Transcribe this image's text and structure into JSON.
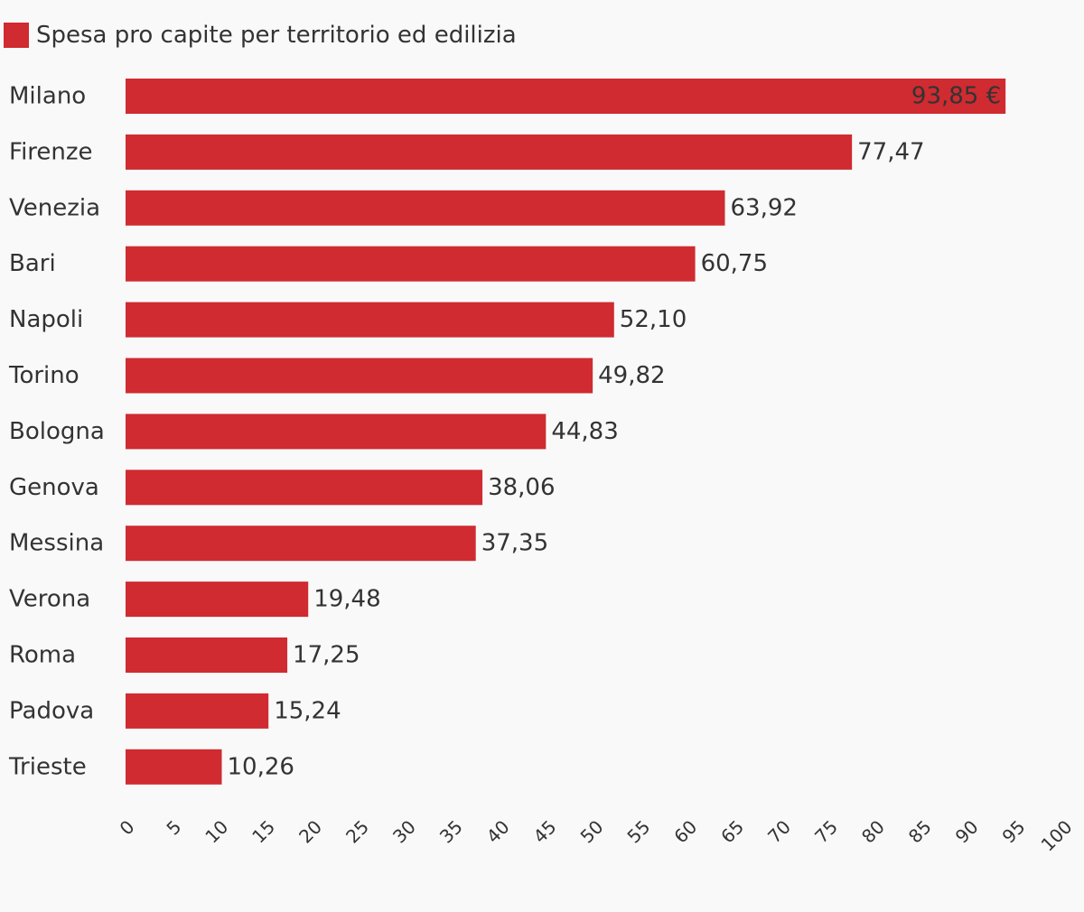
{
  "chart_data": {
    "type": "bar",
    "orientation": "horizontal",
    "legend": {
      "position": "top-left",
      "entries": [
        "Spesa pro capite per territorio ed edilizia"
      ]
    },
    "series": [
      {
        "name": "Spesa pro capite per territorio ed edilizia",
        "color": "#cf2b31",
        "values": [
          93.85,
          77.47,
          63.92,
          60.75,
          52.1,
          49.82,
          44.83,
          38.06,
          37.35,
          19.48,
          17.25,
          15.24,
          10.26
        ]
      }
    ],
    "categories": [
      "Milano",
      "Firenze",
      "Venezia",
      "Bari",
      "Napoli",
      "Torino",
      "Bologna",
      "Genova",
      "Messina",
      "Verona",
      "Roma",
      "Padova",
      "Trieste"
    ],
    "data_labels": [
      "93,85 €",
      "77,47",
      "63,92",
      "60,75",
      "52,10",
      "49,82",
      "44,83",
      "38,06",
      "37,35",
      "19,48",
      "17,25",
      "15,24",
      "10,26"
    ],
    "x_ticks": [
      "0",
      "5",
      "10",
      "15",
      "20",
      "25",
      "30",
      "35",
      "40",
      "45",
      "50",
      "55",
      "60",
      "65",
      "70",
      "75",
      "80",
      "85",
      "90",
      "95",
      "100"
    ],
    "xlim": [
      0,
      100
    ],
    "grid": false
  }
}
